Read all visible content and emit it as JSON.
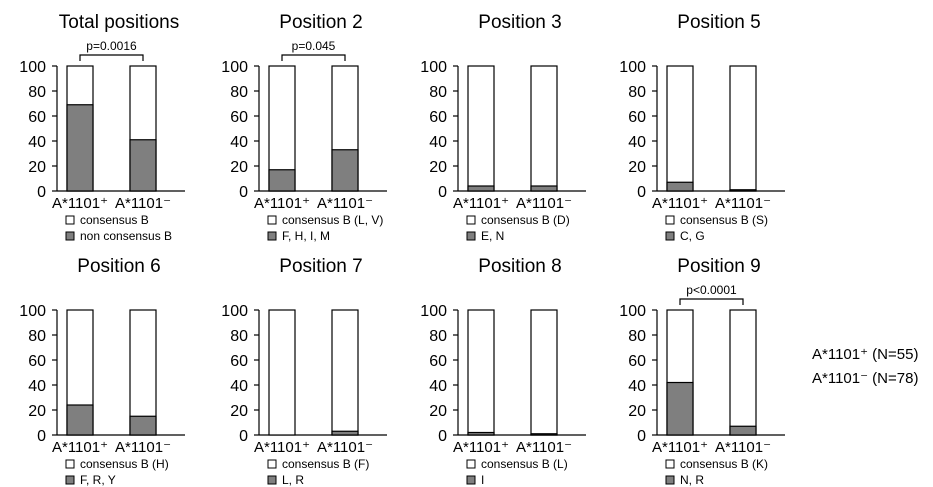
{
  "group_labels": [
    "A*1101⁺",
    "A*1101⁻"
  ],
  "notes": {
    "pos_n": "A*1101⁺ (N=55)",
    "neg_n": "A*1101⁻ (N=78)"
  },
  "colors": {
    "consensus": "#ffffff",
    "non_consensus": "#7f7f7f",
    "stroke": "#000000"
  },
  "chart_data": [
    {
      "type": "bar",
      "stacked": true,
      "title": "Total positions",
      "categories": [
        "A*1101⁺",
        "A*1101⁻"
      ],
      "ylim": [
        0,
        100
      ],
      "yticks": [
        0,
        20,
        40,
        60,
        80,
        100
      ],
      "series": [
        {
          "name": "consensus B",
          "values": [
            31,
            59
          ]
        },
        {
          "name": "non consensus B",
          "values": [
            69,
            41
          ]
        }
      ],
      "annotation": "p=0.0016"
    },
    {
      "type": "bar",
      "stacked": true,
      "title": "Position 2",
      "categories": [
        "A*1101⁺",
        "A*1101⁻"
      ],
      "ylim": [
        0,
        100
      ],
      "yticks": [
        0,
        20,
        40,
        60,
        80,
        100
      ],
      "series": [
        {
          "name": "consensus B (L, V)",
          "values": [
            83,
            67
          ]
        },
        {
          "name": "F, H, I, M",
          "values": [
            17,
            33
          ]
        }
      ],
      "annotation": "p=0.045"
    },
    {
      "type": "bar",
      "stacked": true,
      "title": "Position 3",
      "categories": [
        "A*1101⁺",
        "A*1101⁻"
      ],
      "ylim": [
        0,
        100
      ],
      "yticks": [
        0,
        20,
        40,
        60,
        80,
        100
      ],
      "series": [
        {
          "name": "consensus B (D)",
          "values": [
            96,
            96
          ]
        },
        {
          "name": "E, N",
          "values": [
            4,
            4
          ]
        }
      ]
    },
    {
      "type": "bar",
      "stacked": true,
      "title": "Position 5",
      "categories": [
        "A*1101⁺",
        "A*1101⁻"
      ],
      "ylim": [
        0,
        100
      ],
      "yticks": [
        0,
        20,
        40,
        60,
        80,
        100
      ],
      "series": [
        {
          "name": "consensus B (S)",
          "values": [
            93,
            99
          ]
        },
        {
          "name": "C, G",
          "values": [
            7,
            1
          ]
        }
      ]
    },
    {
      "type": "bar",
      "stacked": true,
      "title": "Position 6",
      "categories": [
        "A*1101⁺",
        "A*1101⁻"
      ],
      "ylim": [
        0,
        100
      ],
      "yticks": [
        0,
        20,
        40,
        60,
        80,
        100
      ],
      "series": [
        {
          "name": "consensus B (H)",
          "values": [
            76,
            85
          ]
        },
        {
          "name": "F, R, Y",
          "values": [
            24,
            15
          ]
        }
      ]
    },
    {
      "type": "bar",
      "stacked": true,
      "title": "Position 7",
      "categories": [
        "A*1101⁺",
        "A*1101⁻"
      ],
      "ylim": [
        0,
        100
      ],
      "yticks": [
        0,
        20,
        40,
        60,
        80,
        100
      ],
      "series": [
        {
          "name": "consensus B (F)",
          "values": [
            100,
            97
          ]
        },
        {
          "name": "L, R",
          "values": [
            0,
            3
          ]
        }
      ]
    },
    {
      "type": "bar",
      "stacked": true,
      "title": "Position 8",
      "categories": [
        "A*1101⁺",
        "A*1101⁻"
      ],
      "ylim": [
        0,
        100
      ],
      "yticks": [
        0,
        20,
        40,
        60,
        80,
        100
      ],
      "series": [
        {
          "name": "consensus B (L)",
          "values": [
            98,
            99
          ]
        },
        {
          "name": "I",
          "values": [
            2,
            1
          ]
        }
      ]
    },
    {
      "type": "bar",
      "stacked": true,
      "title": "Position 9",
      "categories": [
        "A*1101⁺",
        "A*1101⁻"
      ],
      "ylim": [
        0,
        100
      ],
      "yticks": [
        0,
        20,
        40,
        60,
        80,
        100
      ],
      "series": [
        {
          "name": "consensus B (K)",
          "values": [
            58,
            93
          ]
        },
        {
          "name": "N, R",
          "values": [
            42,
            7
          ]
        }
      ],
      "annotation": "p<0.0001"
    }
  ]
}
